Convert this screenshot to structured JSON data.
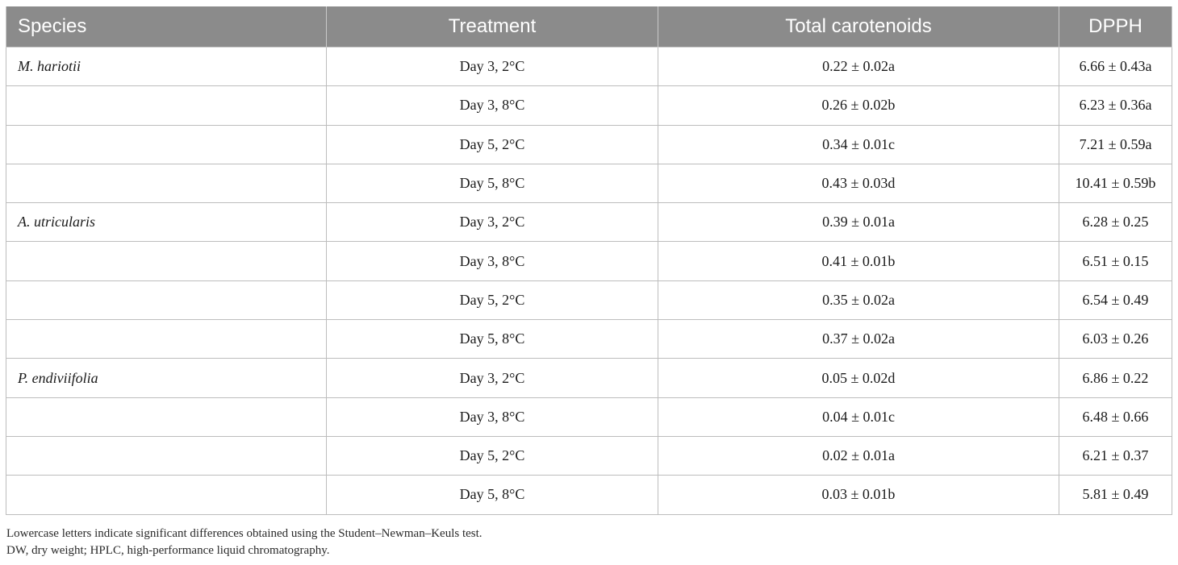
{
  "table": {
    "headers": [
      "Species",
      "Treatment",
      "Total carotenoids",
      "DPPH"
    ],
    "rows": [
      {
        "species": "M. hariotii",
        "treatment": "Day 3, 2°C",
        "carotenoids": "0.22 ± 0.02a",
        "dpph": "6.66 ± 0.43a"
      },
      {
        "species": "",
        "treatment": "Day 3, 8°C",
        "carotenoids": "0.26 ± 0.02b",
        "dpph": "6.23 ± 0.36a"
      },
      {
        "species": "",
        "treatment": "Day 5, 2°C",
        "carotenoids": "0.34 ± 0.01c",
        "dpph": "7.21 ± 0.59a"
      },
      {
        "species": "",
        "treatment": "Day 5, 8°C",
        "carotenoids": "0.43 ± 0.03d",
        "dpph": "10.41 ± 0.59b"
      },
      {
        "species": "A. utricularis",
        "treatment": "Day 3, 2°C",
        "carotenoids": "0.39 ± 0.01a",
        "dpph": "6.28 ± 0.25"
      },
      {
        "species": "",
        "treatment": "Day 3, 8°C",
        "carotenoids": "0.41 ± 0.01b",
        "dpph": "6.51 ± 0.15"
      },
      {
        "species": "",
        "treatment": "Day 5, 2°C",
        "carotenoids": "0.35 ± 0.02a",
        "dpph": "6.54 ± 0.49"
      },
      {
        "species": "",
        "treatment": "Day 5, 8°C",
        "carotenoids": "0.37 ± 0.02a",
        "dpph": "6.03 ± 0.26"
      },
      {
        "species": "P. endiviifolia",
        "treatment": "Day 3, 2°C",
        "carotenoids": "0.05 ± 0.02d",
        "dpph": "6.86 ± 0.22"
      },
      {
        "species": "",
        "treatment": "Day 3, 8°C",
        "carotenoids": "0.04 ± 0.01c",
        "dpph": "6.48 ± 0.66"
      },
      {
        "species": "",
        "treatment": "Day 5, 2°C",
        "carotenoids": "0.02 ± 0.01a",
        "dpph": "6.21 ± 0.37"
      },
      {
        "species": "",
        "treatment": "Day 5, 8°C",
        "carotenoids": "0.03 ± 0.01b",
        "dpph": "5.81 ± 0.49"
      }
    ]
  },
  "notes": {
    "line1": "Lowercase letters indicate significant differences obtained using the Student–Newman–Keuls test.",
    "line2": "DW, dry weight; HPLC, high-performance liquid chromatography."
  },
  "colors": {
    "header_bg": "#8b8b8b",
    "header_text": "#ffffff",
    "grid": "#bdbdbd"
  }
}
